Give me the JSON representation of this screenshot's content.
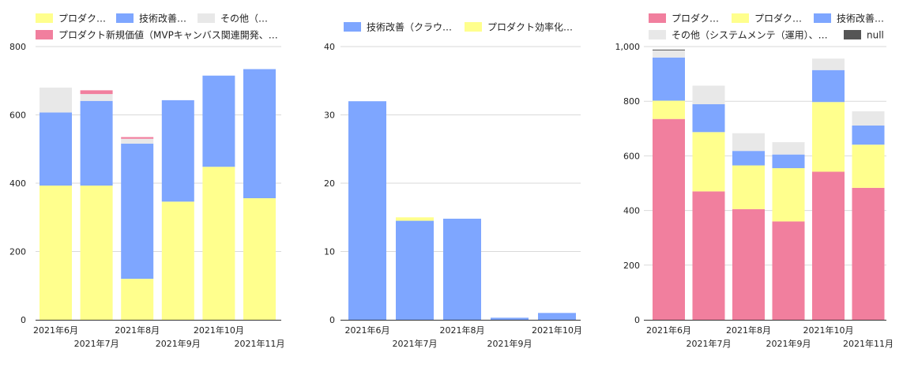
{
  "chart_data": [
    {
      "type": "stacked-bar",
      "categories": [
        "2021年6月",
        "2021年7月",
        "2021年8月",
        "2021年9月",
        "2021年10月",
        "2021年11月"
      ],
      "ylim": [
        0,
        800
      ],
      "yticks": [
        "0",
        "200",
        "400",
        "600",
        "800"
      ],
      "grid": true,
      "legend_position": "top",
      "series": [
        {
          "name": "プロダク…",
          "color": "#ffff8d",
          "values": [
            393,
            393,
            120,
            346,
            448,
            356
          ]
        },
        {
          "name": "技術改善…",
          "color": "#7ea6ff",
          "values": [
            214,
            248,
            396,
            297,
            267,
            378
          ]
        },
        {
          "name": "その他（…",
          "color": "#e8e8e8",
          "values": [
            73,
            20,
            14,
            0,
            0,
            0
          ]
        },
        {
          "name": "プロダクト新規価値（MVPキャンバス関連開発、…",
          "color": "#f17f9e",
          "values": [
            0,
            11,
            5,
            0,
            0,
            0
          ]
        }
      ]
    },
    {
      "type": "stacked-bar",
      "categories": [
        "2021年6月",
        "2021年7月",
        "2021年8月",
        "2021年9月",
        "2021年10月"
      ],
      "ylim": [
        0,
        40
      ],
      "yticks": [
        "0",
        "10",
        "20",
        "30",
        "40"
      ],
      "grid": true,
      "legend_position": "top",
      "series": [
        {
          "name": "技術改善（クラウ…",
          "color": "#7ea6ff",
          "values": [
            32,
            14.5,
            14.8,
            0.3,
            1
          ]
        },
        {
          "name": "プロダクト効率化…",
          "color": "#ffff8d",
          "values": [
            0,
            0.5,
            0,
            0,
            0
          ]
        }
      ]
    },
    {
      "type": "stacked-bar",
      "categories": [
        "2021年6月",
        "2021年7月",
        "2021年8月",
        "2021年9月",
        "2021年10月",
        "2021年11月"
      ],
      "ylim": [
        0,
        1000
      ],
      "yticks": [
        "0",
        "200",
        "400",
        "600",
        "800",
        "1,000"
      ],
      "grid": true,
      "legend_position": "top",
      "series": [
        {
          "name": "プロダク…",
          "color": "#f17f9e",
          "values": [
            735,
            470,
            405,
            360,
            542,
            483
          ]
        },
        {
          "name": "プロダク…",
          "color": "#ffff8d",
          "values": [
            67,
            217,
            160,
            195,
            255,
            158
          ]
        },
        {
          "name": "技術改善…",
          "color": "#7ea6ff",
          "values": [
            158,
            102,
            53,
            50,
            117,
            70
          ]
        },
        {
          "name": "その他（システムメンテ（運用）、…",
          "color": "#e8e8e8",
          "values": [
            26,
            68,
            65,
            45,
            42,
            52
          ]
        },
        {
          "name": "null",
          "color": "#555555",
          "values": [
            3,
            0,
            0,
            0,
            0,
            0
          ]
        }
      ]
    }
  ]
}
